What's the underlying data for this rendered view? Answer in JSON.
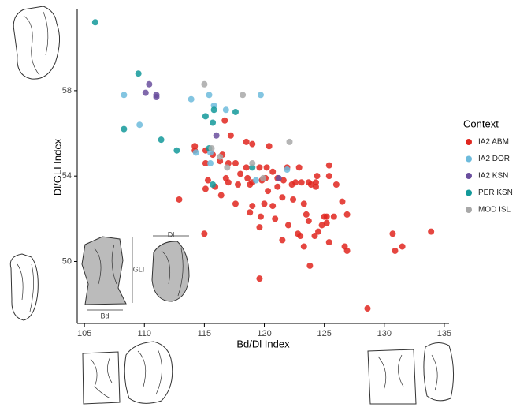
{
  "chart_data": {
    "type": "scatter",
    "x_label": "Bd/Dl Index",
    "y_label": "Dl/GLI Index",
    "legend_title": "Context",
    "legend_position": "right",
    "annotations": [
      "Dl",
      "GLI",
      "Bd"
    ],
    "xlim": [
      104.4,
      135.4
    ],
    "ylim": [
      47.1,
      61.8
    ],
    "xticks": [
      105,
      110,
      115,
      120,
      125,
      130,
      135
    ],
    "yticks": [
      50,
      54,
      58
    ],
    "grid": false,
    "series": [
      {
        "name": "IA2 ABM",
        "color": "#e0261f",
        "x": [
          116.7,
          117.2,
          118.5,
          119.0,
          120.4,
          114.2,
          114.2,
          115.1,
          115.7,
          116.5,
          115.1,
          116.3,
          117.0,
          117.6,
          118.5,
          119.6,
          120.2,
          120.7,
          121.9,
          122.9,
          120.1,
          116.8,
          117.0,
          117.8,
          118.8,
          119.0,
          119.8,
          121.1,
          121.1,
          120.3,
          121.6,
          122.3,
          122.6,
          123.1,
          123.7,
          124.3,
          124.4,
          123.9,
          124.3,
          125.4,
          125.4,
          126.0,
          123.3,
          122.4,
          121.5,
          120.7,
          120.0,
          119.0,
          118.8,
          119.7,
          119.6,
          120.9,
          122.0,
          122.8,
          123.0,
          121.5,
          123.3,
          123.8,
          124.2,
          124.5,
          124.8,
          125.0,
          125.2,
          125.2,
          125.8,
          125.4,
          126.7,
          126.9,
          126.9,
          126.5,
          123.5,
          123.7,
          117.6,
          116.4,
          115.9,
          115.1,
          115.3,
          112.9,
          115.0,
          119.6,
          128.6,
          130.7,
          130.9,
          131.5,
          133.9,
          118.6,
          118.0
        ],
        "values": [
          56.6,
          55.9,
          55.6,
          55.5,
          55.4,
          55.4,
          55.2,
          55.2,
          55.0,
          55.0,
          54.6,
          54.7,
          54.6,
          54.6,
          54.4,
          54.4,
          54.4,
          54.2,
          54.4,
          54.4,
          53.9,
          53.9,
          53.7,
          53.6,
          53.6,
          53.7,
          53.8,
          53.9,
          53.5,
          53.3,
          53.8,
          53.6,
          53.7,
          53.7,
          53.7,
          53.7,
          54.0,
          53.6,
          53.5,
          54.0,
          54.5,
          53.6,
          52.7,
          52.9,
          53.0,
          52.6,
          52.7,
          52.6,
          52.3,
          52.1,
          51.6,
          52.0,
          51.7,
          51.3,
          51.2,
          51.0,
          50.7,
          49.8,
          51.2,
          51.4,
          51.7,
          52.1,
          52.1,
          51.8,
          52.1,
          50.9,
          50.7,
          50.5,
          52.2,
          52.8,
          52.2,
          51.9,
          52.7,
          53.1,
          53.5,
          53.4,
          53.8,
          52.9,
          51.3,
          49.2,
          47.8,
          51.3,
          50.5,
          50.7,
          51.4,
          53.9,
          54.1
        ]
      },
      {
        "name": "IA2 DOR",
        "color": "#6dbbdc",
        "x": [
          108.3,
          109.6,
          113.9,
          115.4,
          115.8,
          116.8,
          119.7,
          114.3,
          115.5,
          115.5,
          119.3,
          121.9
        ],
        "values": [
          57.8,
          56.4,
          57.6,
          57.8,
          57.3,
          57.1,
          57.8,
          55.1,
          55.1,
          54.6,
          53.8,
          54.3
        ]
      },
      {
        "name": "IA2 KSN",
        "color": "#6a4f9e",
        "x": [
          110.4,
          110.1,
          111.0,
          111.0,
          116.0,
          121.2
        ],
        "values": [
          58.3,
          57.9,
          57.8,
          57.7,
          55.9,
          53.9
        ]
      },
      {
        "name": "PER KSN",
        "color": "#13999a",
        "x": [
          105.9,
          109.5,
          108.3,
          111.4,
          112.7,
          115.8,
          115.1,
          115.7,
          117.6,
          115.7,
          119.0,
          115.4
        ],
        "values": [
          61.2,
          58.8,
          56.2,
          55.7,
          55.2,
          57.1,
          56.8,
          56.5,
          57.0,
          53.6,
          54.4,
          55.3
        ]
      },
      {
        "name": "MOD ISL",
        "color": "#a8a8a8",
        "x": [
          115.0,
          118.2,
          122.1,
          115.6,
          116.3,
          116.9,
          119.0,
          119.9
        ],
        "values": [
          58.3,
          57.8,
          55.6,
          55.3,
          54.9,
          54.4,
          54.6,
          53.9
        ]
      }
    ]
  }
}
